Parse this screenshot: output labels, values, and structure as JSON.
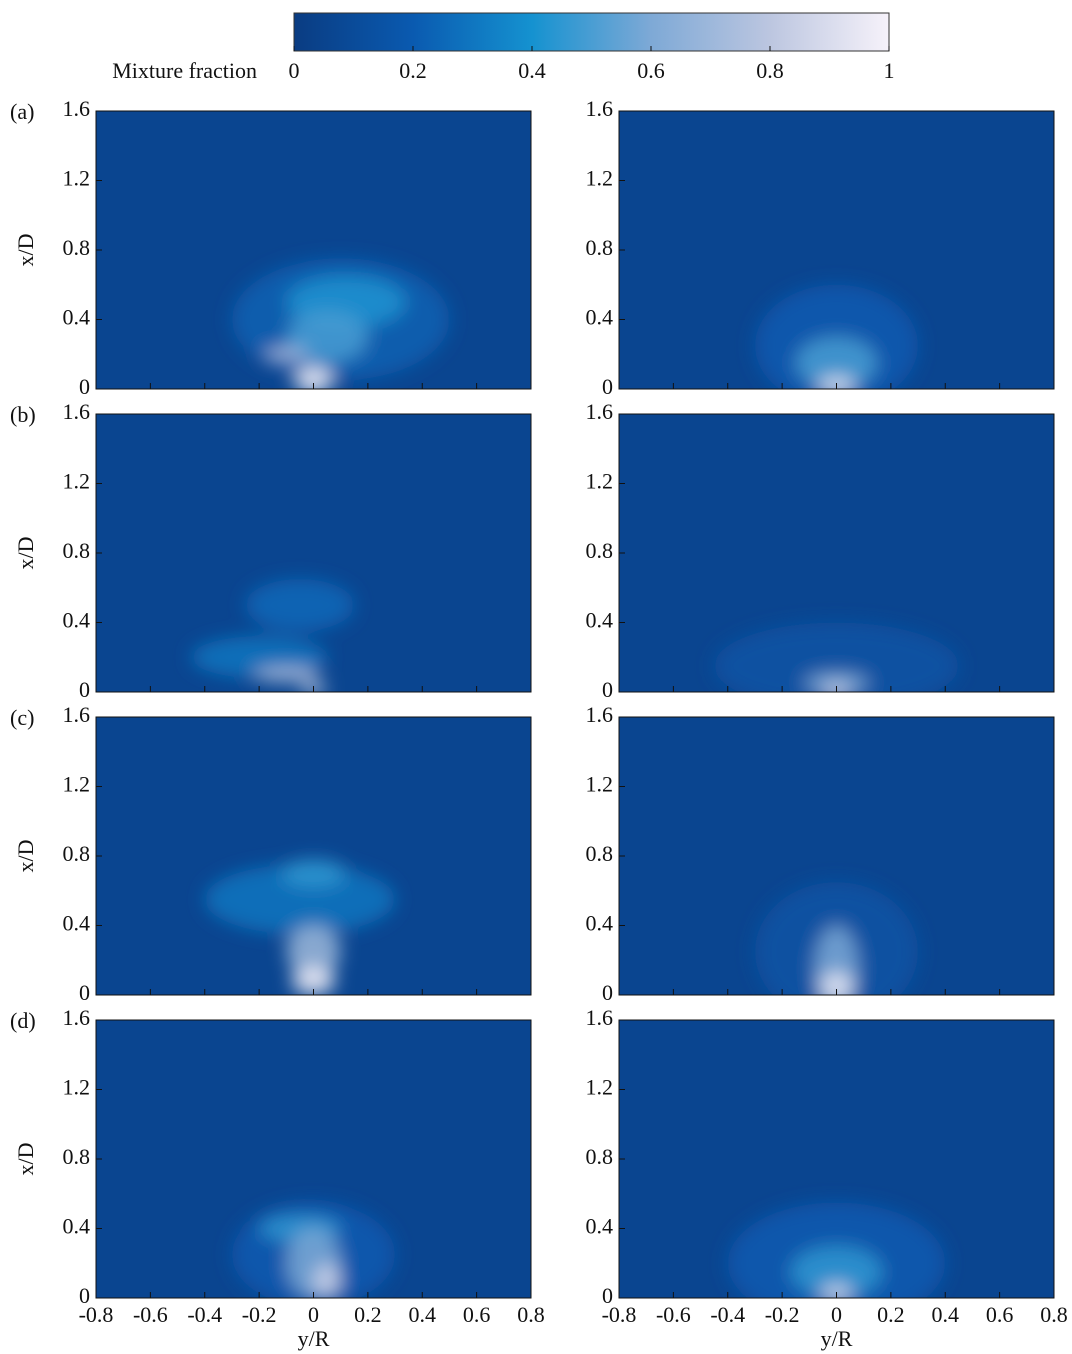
{
  "chart_data": [
    {
      "type": "colorbar",
      "title": "Mixture fraction",
      "xlim": [
        0,
        1
      ],
      "xticks": [
        0,
        0.2,
        0.4,
        0.6,
        0.8,
        1
      ],
      "colors": [
        "#0a3c82",
        "#0a5ab0",
        "#1592d0",
        "#7ea9d6",
        "#bcc6e0",
        "#f6f2fa"
      ]
    },
    {
      "type": "contour",
      "panel_label": "(a)",
      "ylabel": "x/D",
      "xlim": [
        -0.8,
        0.8
      ],
      "ylim": [
        0,
        1.6
      ],
      "yticks": [
        0,
        0.4,
        0.8,
        1.2,
        1.6
      ]
    },
    {
      "type": "contour",
      "xlim": [
        -0.8,
        0.8
      ],
      "ylim": [
        0,
        1.6
      ],
      "yticks": [
        0,
        0.4,
        0.8,
        1.2,
        1.6
      ]
    },
    {
      "type": "contour",
      "panel_label": "(b)",
      "ylabel": "x/D",
      "xlim": [
        -0.8,
        0.8
      ],
      "ylim": [
        0,
        1.6
      ],
      "yticks": [
        0,
        0.4,
        0.8,
        1.2,
        1.6
      ]
    },
    {
      "type": "contour",
      "xlim": [
        -0.8,
        0.8
      ],
      "ylim": [
        0,
        1.6
      ],
      "yticks": [
        0,
        0.4,
        0.8,
        1.2,
        1.6
      ]
    },
    {
      "type": "contour",
      "panel_label": "(c)",
      "ylabel": "x/D",
      "xlim": [
        -0.8,
        0.8
      ],
      "ylim": [
        0,
        1.6
      ],
      "yticks": [
        0,
        0.4,
        0.8,
        1.2,
        1.6
      ]
    },
    {
      "type": "contour",
      "xlim": [
        -0.8,
        0.8
      ],
      "ylim": [
        0,
        1.6
      ],
      "yticks": [
        0,
        0.4,
        0.8,
        1.2,
        1.6
      ]
    },
    {
      "type": "contour",
      "panel_label": "(d)",
      "ylabel": "x/D",
      "xlabel": "y/R",
      "xlim": [
        -0.8,
        0.8
      ],
      "ylim": [
        0,
        1.6
      ],
      "yticks": [
        0,
        0.4,
        0.8,
        1.2,
        1.6
      ],
      "xticks": [
        -0.8,
        -0.6,
        -0.4,
        -0.2,
        0,
        0.2,
        0.4,
        0.6,
        0.8
      ]
    },
    {
      "type": "contour",
      "xlabel": "y/R",
      "xlim": [
        -0.8,
        0.8
      ],
      "ylim": [
        0,
        1.6
      ],
      "yticks": [
        0,
        0.4,
        0.8,
        1.2,
        1.6
      ],
      "xticks": [
        -0.8,
        -0.6,
        -0.4,
        -0.2,
        0,
        0.2,
        0.4,
        0.6,
        0.8
      ]
    }
  ]
}
